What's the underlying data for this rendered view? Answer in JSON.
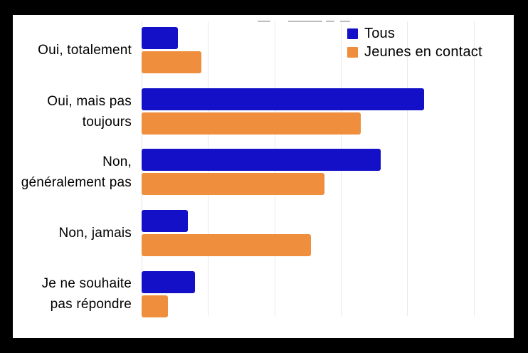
{
  "style": {
    "frame_color": "#000000",
    "background": "#ffffff",
    "grid_color": "#e9e9e9",
    "text_color": "#000000"
  },
  "legend": {
    "items": [
      {
        "label": "Tous",
        "color": "#1310C8"
      },
      {
        "label": "Jeunes en contact",
        "color": "#EF8E3C"
      }
    ]
  },
  "chart_data": {
    "type": "bar",
    "orientation": "horizontal",
    "title": "",
    "xlabel": "",
    "ylabel": "",
    "categories": [
      "Oui, totalement",
      "Oui, mais pas toujours",
      "Non, généralement pas",
      "Non, jamais",
      "Je ne souhaite pas répondre"
    ],
    "category_display_lines": [
      [
        "Oui, totalement"
      ],
      [
        "Oui, mais pas",
        "toujours"
      ],
      [
        "Non,",
        "généralement pas"
      ],
      [
        "Non, jamais"
      ],
      [
        "Je ne souhaite",
        "pas répondre"
      ]
    ],
    "series": [
      {
        "name": "Tous",
        "color": "#1310C8",
        "values": [
          5.5,
          42.5,
          36,
          7,
          8
        ]
      },
      {
        "name": "Jeunes en contact",
        "color": "#EF8E3C",
        "values": [
          9,
          33,
          27.5,
          25.5,
          4
        ]
      }
    ],
    "xlim": [
      0,
      56
    ],
    "gridline_step": 10,
    "grid": true,
    "axis_tick_labels_visible": false,
    "legend_position": "top-right",
    "note": "x-axis has no visible tick labels; values estimated in percent assuming 10% gridline spacing"
  }
}
